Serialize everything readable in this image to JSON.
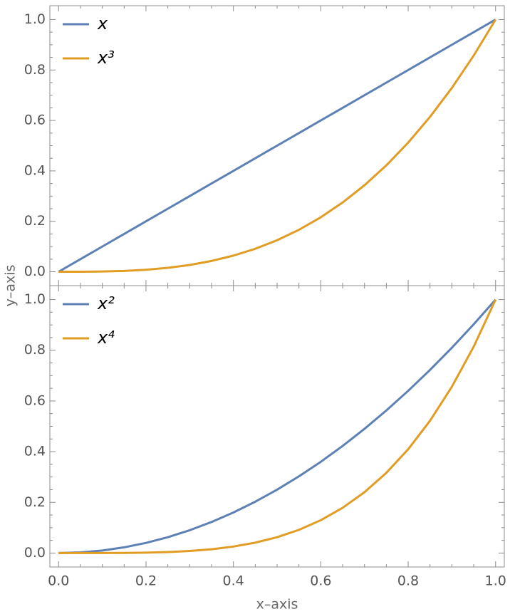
{
  "chart_data": [
    {
      "type": "line",
      "x": [
        0,
        0.05,
        0.1,
        0.15,
        0.2,
        0.25,
        0.3,
        0.35,
        0.4,
        0.45,
        0.5,
        0.55,
        0.6,
        0.65,
        0.7,
        0.75,
        0.8,
        0.85,
        0.9,
        0.95,
        1
      ],
      "series": [
        {
          "name": "x",
          "color": "#5e81b5",
          "values": [
            0,
            0.05,
            0.1,
            0.15,
            0.2,
            0.25,
            0.3,
            0.35,
            0.4,
            0.45,
            0.5,
            0.55,
            0.6,
            0.65,
            0.7,
            0.75,
            0.8,
            0.85,
            0.9,
            0.95,
            1
          ]
        },
        {
          "name": "x³",
          "color": "#e19c24",
          "values": [
            0,
            0.000125,
            0.001,
            0.003375,
            0.008,
            0.015625,
            0.027,
            0.042875,
            0.064,
            0.091125,
            0.125,
            0.166375,
            0.216,
            0.274625,
            0.343,
            0.421875,
            0.512,
            0.614125,
            0.729,
            0.857375,
            1
          ]
        }
      ],
      "xlim": [
        -0.02,
        1.02
      ],
      "xticks": [
        {
          "value": 0,
          "label": "0.0"
        },
        0.2,
        0.4,
        0.6,
        0.8,
        {
          "value": 1,
          "label": "1.0"
        }
      ],
      "ylim": [
        -0.055,
        1.055
      ],
      "yticks": [
        {
          "value": 0,
          "label": "0.0"
        },
        0.2,
        0.4,
        0.6,
        0.8,
        {
          "value": 1,
          "label": "1.0"
        }
      ],
      "ylabel": "y–axis",
      "legend": "upper left"
    },
    {
      "type": "line",
      "x": [
        0,
        0.05,
        0.1,
        0.15,
        0.2,
        0.25,
        0.3,
        0.35,
        0.4,
        0.45,
        0.5,
        0.55,
        0.6,
        0.65,
        0.7,
        0.75,
        0.8,
        0.85,
        0.9,
        0.95,
        1
      ],
      "series": [
        {
          "name": "x²",
          "color": "#5e81b5",
          "values": [
            0,
            0.0025,
            0.01,
            0.0225,
            0.04,
            0.0625,
            0.09,
            0.1225,
            0.16,
            0.2025,
            0.25,
            0.3025,
            0.36,
            0.4225,
            0.49,
            0.5625,
            0.64,
            0.7225,
            0.81,
            0.9025,
            1
          ]
        },
        {
          "name": "x⁴",
          "color": "#e19c24",
          "values": [
            0,
            6.25e-06,
            0.0001,
            0.00050625,
            0.0016,
            0.00390625,
            0.0081,
            0.01500625,
            0.0256,
            0.04100625,
            0.0625,
            0.09150625,
            0.1296,
            0.17850625,
            0.2401,
            0.31640625,
            0.4096,
            0.52200625,
            0.6561,
            0.81450625,
            1
          ]
        }
      ],
      "xlim": [
        -0.02,
        1.02
      ],
      "xticks": [
        {
          "value": 0,
          "label": "0.0"
        },
        0.2,
        0.4,
        0.6,
        0.8,
        {
          "value": 1,
          "label": "1.0"
        }
      ],
      "ylim": [
        -0.055,
        1.055
      ],
      "yticks": [
        {
          "value": 0,
          "label": "0.0"
        },
        0.2,
        0.4,
        0.6,
        0.8,
        {
          "value": 1,
          "label": "1.0"
        }
      ],
      "xlabel": "x–axis",
      "legend": "upper left"
    }
  ]
}
